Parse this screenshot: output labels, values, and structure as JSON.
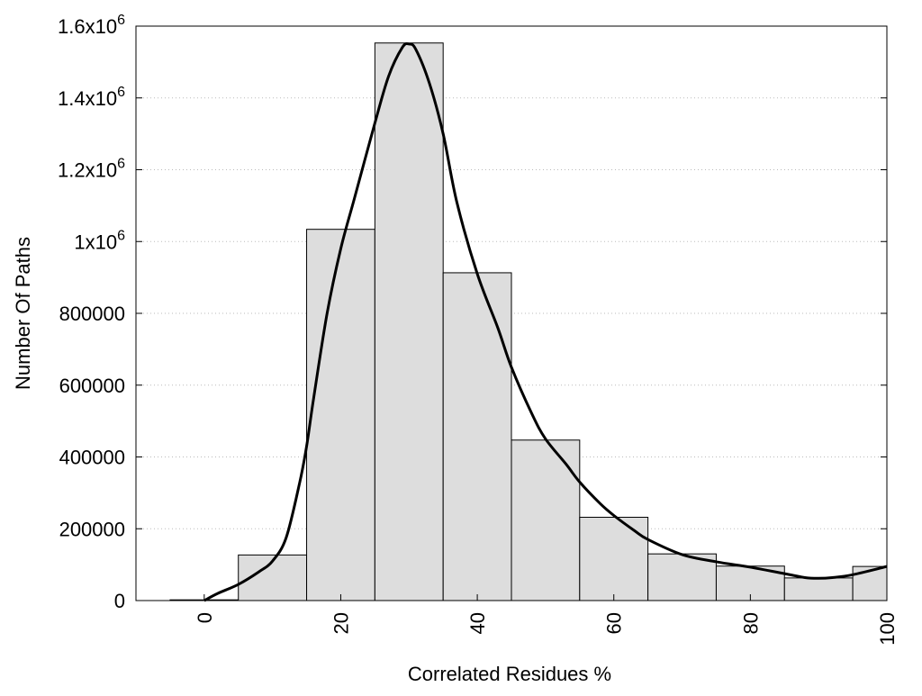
{
  "chart_data": {
    "type": "bar",
    "subtype": "histogram-with-density-curve",
    "xlabel": "Correlated Residues %",
    "ylabel": "Number Of Paths",
    "xlim": [
      -10,
      100
    ],
    "ylim": [
      0,
      1600000
    ],
    "x_ticks": [
      {
        "value": 0,
        "label": "0"
      },
      {
        "value": 20,
        "label": "20"
      },
      {
        "value": 40,
        "label": "40"
      },
      {
        "value": 60,
        "label": "60"
      },
      {
        "value": 80,
        "label": "80"
      },
      {
        "value": 100,
        "label": "100"
      }
    ],
    "y_ticks": [
      {
        "value": 0,
        "label": "0",
        "base": "",
        "exp": ""
      },
      {
        "value": 200000,
        "label": "200000",
        "base": "",
        "exp": ""
      },
      {
        "value": 400000,
        "label": "400000",
        "base": "",
        "exp": ""
      },
      {
        "value": 600000,
        "label": "600000",
        "base": "",
        "exp": ""
      },
      {
        "value": 800000,
        "label": "800000",
        "base": "",
        "exp": ""
      },
      {
        "value": 1000000,
        "label": "",
        "base": "1x10",
        "exp": "6"
      },
      {
        "value": 1200000,
        "label": "",
        "base": "1.2x10",
        "exp": "6"
      },
      {
        "value": 1400000,
        "label": "",
        "base": "1.4x10",
        "exp": "6"
      },
      {
        "value": 1600000,
        "label": "",
        "base": "1.6x10",
        "exp": "6"
      }
    ],
    "grid": "horizontal dotted",
    "bin_width": 10,
    "bins": [
      {
        "center": 0,
        "value": 2000
      },
      {
        "center": 10,
        "value": 127000
      },
      {
        "center": 20,
        "value": 1034000
      },
      {
        "center": 30,
        "value": 1553000
      },
      {
        "center": 40,
        "value": 913000
      },
      {
        "center": 50,
        "value": 447000
      },
      {
        "center": 60,
        "value": 232000
      },
      {
        "center": 70,
        "value": 130000
      },
      {
        "center": 80,
        "value": 96000
      },
      {
        "center": 90,
        "value": 63000
      },
      {
        "center": 100,
        "value": 95000
      }
    ],
    "curve": {
      "x": [
        0,
        2,
        5,
        8,
        10,
        12,
        14,
        15,
        16,
        18,
        20,
        22,
        25,
        27,
        29,
        30,
        31,
        33,
        35,
        37,
        40,
        43,
        45,
        48,
        50,
        53,
        55,
        58,
        60,
        63,
        65,
        70,
        75,
        80,
        85,
        88,
        90,
        92,
        95,
        100
      ],
      "y": [
        0,
        20000,
        45000,
        80000,
        110000,
        175000,
        330000,
        430000,
        560000,
        800000,
        980000,
        1120000,
        1330000,
        1460000,
        1540000,
        1550000,
        1535000,
        1440000,
        1300000,
        1110000,
        910000,
        760000,
        650000,
        520000,
        450000,
        380000,
        330000,
        270000,
        237000,
        195000,
        170000,
        128000,
        108000,
        93000,
        75000,
        64000,
        62000,
        64000,
        72000,
        95000
      ]
    },
    "colors": {
      "bar_fill": "#dddddd",
      "bar_stroke": "#000000",
      "curve": "#000000",
      "grid": "#bbbbbb"
    }
  }
}
